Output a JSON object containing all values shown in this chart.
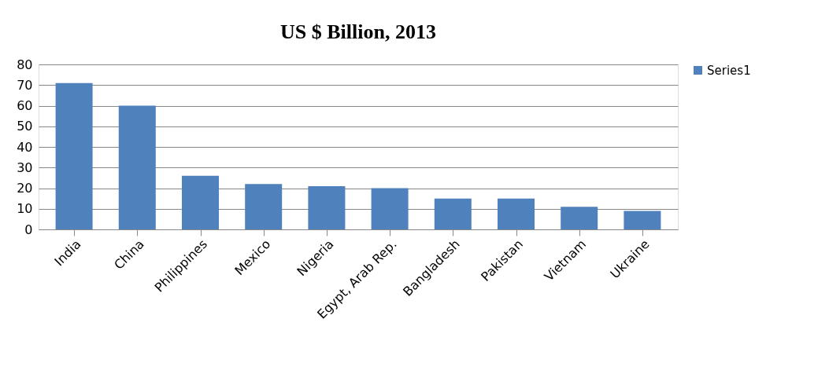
{
  "chart_data": {
    "type": "bar",
    "title": "US $ Billion, 2013",
    "categories": [
      "India",
      "China",
      "Philippines",
      "Mexico",
      "Nigeria",
      "Egypt, Arab Rep.",
      "Bangladesh",
      "Pakistan",
      "Vietnam",
      "Ukraine"
    ],
    "series": [
      {
        "name": "Series1",
        "color": "#4f81bd",
        "values": [
          71,
          60,
          26,
          22,
          21,
          20,
          15,
          15,
          11,
          9
        ]
      }
    ],
    "ylim": [
      0,
      80
    ],
    "yticks": [
      0,
      10,
      20,
      30,
      40,
      50,
      60,
      70,
      80
    ],
    "grid": "y",
    "legend": "right"
  }
}
